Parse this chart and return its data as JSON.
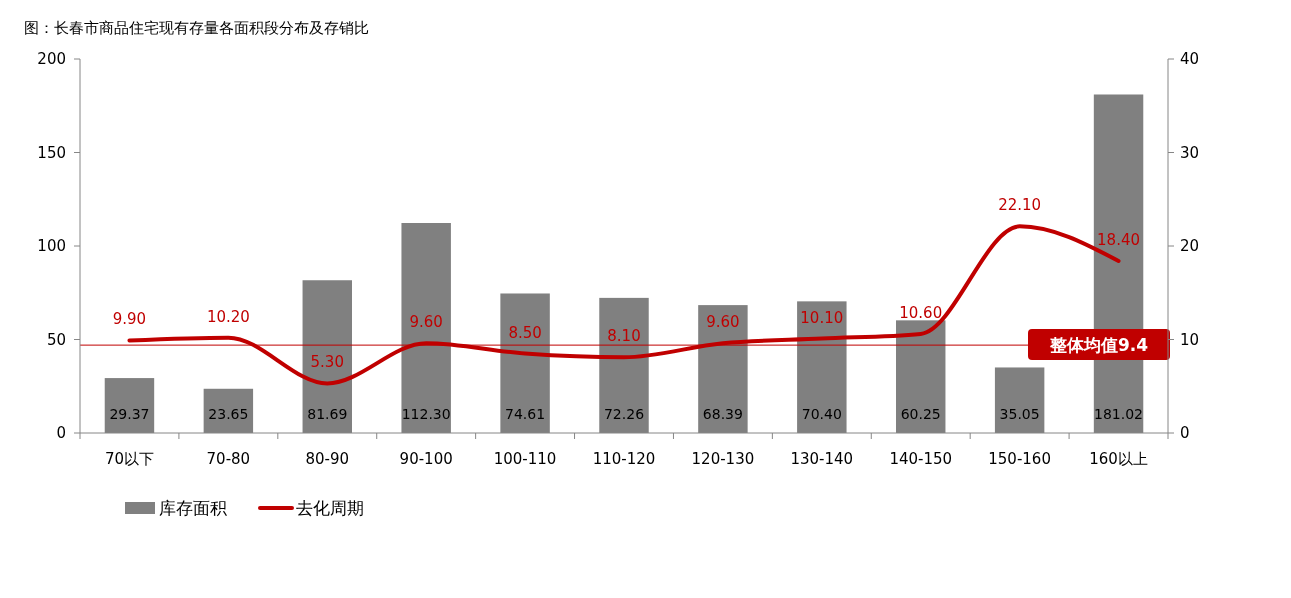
{
  "chart_data": {
    "type": "bar",
    "title": "图：长春市商品住宅现有存量各面积段分布及存销比",
    "categories": [
      "70以下",
      "70-80",
      "80-90",
      "90-100",
      "100-110",
      "110-120",
      "120-130",
      "130-140",
      "140-150",
      "150-160",
      "160以上"
    ],
    "series": [
      {
        "name": "库存面积",
        "color": "#808080",
        "values": [
          29.37,
          23.65,
          81.69,
          112.3,
          74.61,
          72.26,
          68.39,
          70.4,
          60.25,
          35.05,
          181.02
        ],
        "value_labels": [
          "29.37",
          "23.65",
          "81.69",
          "112.30",
          "74.61",
          "72.26",
          "68.39",
          "70.40",
          "60.25",
          "35.05",
          "181.02"
        ]
      },
      {
        "name": "去化周期",
        "type": "line",
        "axis": "y2",
        "color": "#c00000",
        "values": [
          9.9,
          10.2,
          5.3,
          9.6,
          8.5,
          8.1,
          9.6,
          10.1,
          10.6,
          22.1,
          18.4
        ],
        "value_labels": [
          "9.90",
          "10.20",
          "5.30",
          "9.60",
          "8.50",
          "8.10",
          "9.60",
          "10.10",
          "10.60",
          "22.10",
          "18.40"
        ]
      }
    ],
    "ylim": [
      0,
      200
    ],
    "yticks": [
      0,
      50,
      100,
      150,
      200
    ],
    "y2lim": [
      0,
      40
    ],
    "y2ticks": [
      0,
      10,
      20,
      30,
      40
    ],
    "ref_lines": [
      {
        "axis": "y2",
        "value": 9.4,
        "label": "整体均值9.4",
        "color": "#c00000"
      }
    ],
    "grid": false,
    "legend": "bottom left"
  }
}
